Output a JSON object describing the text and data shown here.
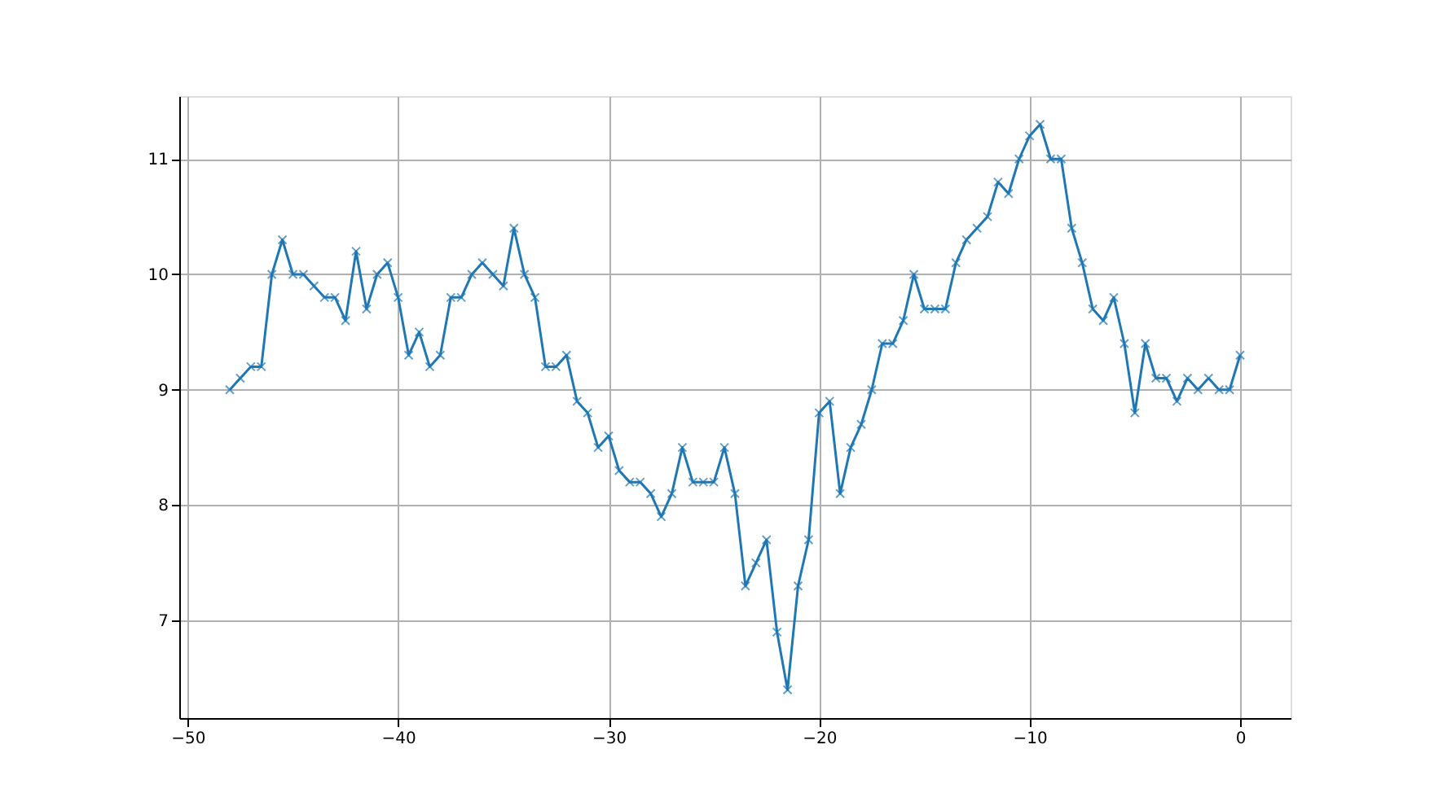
{
  "chart_data": {
    "type": "line",
    "marker": "cross",
    "line_style": "solid",
    "grid": true,
    "x": [
      -48,
      -47.5,
      -47,
      -46.5,
      -46,
      -45.5,
      -45,
      -44.5,
      -44,
      -43.5,
      -43,
      -42.5,
      -42,
      -41.5,
      -41,
      -40.5,
      -40,
      -39.5,
      -39,
      -38.5,
      -38,
      -37.5,
      -37,
      -36.5,
      -36,
      -35.5,
      -35,
      -34.5,
      -34,
      -33.5,
      -33,
      -32.5,
      -32,
      -31.5,
      -31,
      -30.5,
      -30,
      -29.5,
      -29,
      -28.5,
      -28,
      -27.5,
      -27,
      -26.5,
      -26,
      -25.5,
      -25,
      -24.5,
      -24,
      -23.5,
      -23,
      -22.5,
      -22,
      -21.5,
      -21,
      -20.5,
      -20,
      -19.5,
      -19,
      -18.5,
      -18,
      -17.5,
      -17,
      -16.5,
      -16,
      -15.5,
      -15,
      -14.5,
      -14,
      -13.5,
      -13,
      -12.5,
      -12,
      -11.5,
      -11,
      -10.5,
      -10,
      -9.5,
      -9,
      -8.5,
      -8,
      -7.5,
      -7,
      -6.5,
      -6,
      -5.5,
      -5,
      -4.5,
      -4,
      -3.5,
      -3,
      -2.5,
      -2,
      -1.5,
      -1,
      -0.5,
      0
    ],
    "series": [
      {
        "color": "#1f77b4",
        "values": [
          9.0,
          9.1,
          9.2,
          9.2,
          10.0,
          10.3,
          10.0,
          10.0,
          9.9,
          9.8,
          9.8,
          9.6,
          10.2,
          9.7,
          10.0,
          10.1,
          9.8,
          9.3,
          9.5,
          9.2,
          9.3,
          9.8,
          9.8,
          10.0,
          10.1,
          10.0,
          9.9,
          10.4,
          10.0,
          9.8,
          9.2,
          9.2,
          9.3,
          8.9,
          8.8,
          8.5,
          8.6,
          8.3,
          8.2,
          8.2,
          8.1,
          7.9,
          8.1,
          8.5,
          8.2,
          8.2,
          8.2,
          8.5,
          8.1,
          7.3,
          7.5,
          7.7,
          6.9,
          6.4,
          7.3,
          7.7,
          8.8,
          8.9,
          8.1,
          8.5,
          8.7,
          9.0,
          9.4,
          9.4,
          9.6,
          10.0,
          9.7,
          9.7,
          9.7,
          10.1,
          10.3,
          10.4,
          10.5,
          10.8,
          10.7,
          11.0,
          11.2,
          11.3,
          11.0,
          11.0,
          10.4,
          10.1,
          9.7,
          9.6,
          9.8,
          9.4,
          8.8,
          9.4,
          9.1,
          9.1,
          8.9,
          9.1,
          9.0,
          9.1,
          9.0,
          9.0,
          9.3
        ]
      }
    ],
    "xlim": [
      -50.4,
      2.4
    ],
    "ylim": [
      6.155,
      11.545
    ],
    "xticks": [
      -50,
      -40,
      -30,
      -20,
      -10,
      0
    ],
    "yticks": [
      7,
      8,
      9,
      10,
      11
    ]
  }
}
